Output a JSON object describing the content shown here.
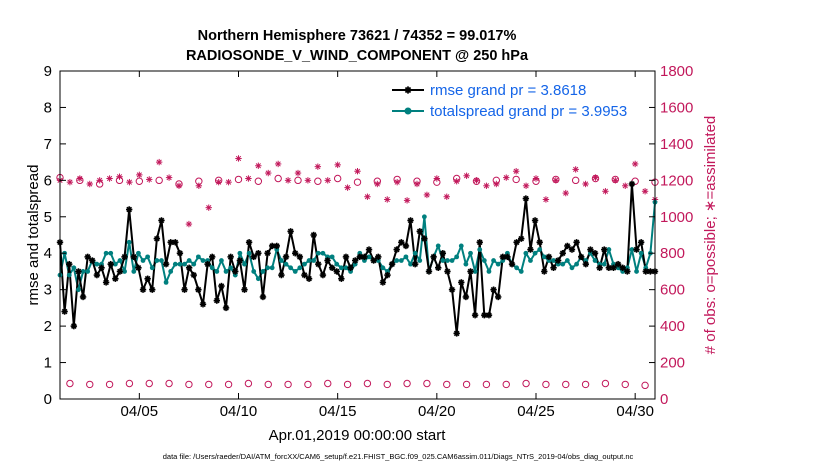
{
  "chart_data": {
    "type": "line",
    "title_line1": "Northern Hemisphere 73621 / 74352 = 99.017%",
    "title_line2": "RADIOSONDE_V_WIND_COMPONENT @ 250 hPa",
    "xlabel": "Apr.01,2019 00:00:00 start",
    "ylabel_left": "rmse and totalspread",
    "ylabel_right": "# of obs: o=possible; ∗=assimilated",
    "footnote": "data file: /Users/raeder/DAI/ATM_forcXX/CAM6_setup/f.e21.FHIST_BGC.f09_025.CAM6assim.011/Diags_NTrS_2019-04/obs_diag_output.nc",
    "xlim": [
      1,
      31
    ],
    "ylim_left": [
      0,
      9
    ],
    "ylim_right": [
      0,
      1800
    ],
    "x_ticks": [
      5,
      10,
      15,
      20,
      25,
      30
    ],
    "x_tick_labels": [
      "04/05",
      "04/10",
      "04/15",
      "04/20",
      "04/25",
      "04/30"
    ],
    "y_left_ticks": [
      "0",
      "1",
      "2",
      "3",
      "4",
      "5",
      "6",
      "7",
      "8",
      "9"
    ],
    "y_right_ticks": [
      "0",
      "200",
      "400",
      "600",
      "800",
      "1000",
      "1200",
      "1400",
      "1600",
      "1800"
    ],
    "grid": false,
    "legend_position": "top-right",
    "series": [
      {
        "name": "rmse grand pr = 3.8618",
        "color": "#000000",
        "marker": "asterisk",
        "axis": "left",
        "values": [
          4.3,
          2.4,
          3.7,
          2.0,
          3.5,
          2.8,
          3.9,
          3.8,
          3.4,
          3.6,
          3.2,
          3.7,
          3.3,
          3.5,
          3.9,
          5.2,
          3.9,
          3.6,
          3.0,
          3.3,
          3.0,
          4.4,
          4.9,
          3.7,
          4.3,
          4.3,
          4.0,
          3.0,
          3.6,
          3.4,
          3.0,
          2.6,
          3.7,
          3.9,
          2.7,
          3.1,
          2.5,
          3.9,
          3.5,
          3.8,
          3.0,
          4.3,
          3.9,
          4.0,
          2.8,
          4.0,
          4.2,
          4.2,
          3.4,
          3.9,
          4.6,
          4.0,
          3.9,
          3.4,
          3.3,
          4.5,
          3.7,
          3.4,
          3.8,
          3.6,
          3.5,
          3.3,
          3.9,
          3.6,
          3.8,
          3.9,
          3.9,
          4.1,
          3.8,
          3.9,
          3.2,
          3.4,
          3.7,
          4.1,
          4.3,
          4.2,
          4.9,
          3.7,
          4.6,
          4.4,
          3.5,
          3.9,
          3.6,
          4.0,
          3.5,
          3.0,
          1.8,
          3.2,
          2.8,
          3.5,
          2.3,
          4.3,
          2.3,
          2.3,
          3.0,
          2.8,
          3.9,
          3.9,
          3.7,
          4.3,
          4.4,
          5.5,
          4.1,
          4.9,
          4.3,
          3.5,
          3.9,
          3.6,
          3.8,
          4.0,
          4.2,
          4.1,
          4.3,
          3.9,
          3.7,
          4.1,
          4.0,
          3.6,
          4.1,
          3.6,
          3.6,
          3.7,
          3.6,
          3.5,
          5.9,
          4.1,
          4.3,
          3.5,
          3.5,
          3.5
        ]
      },
      {
        "name": "totalspread grand pr = 3.9953",
        "color": "#00807f",
        "marker": "dot",
        "axis": "left",
        "values": [
          3.4,
          4.0,
          3.4,
          3.6,
          3.0,
          3.5,
          3.5,
          3.8,
          3.7,
          3.7,
          4.0,
          4.0,
          3.7,
          3.8,
          3.5,
          4.3,
          3.5,
          4.0,
          3.8,
          3.9,
          3.6,
          3.8,
          3.8,
          3.2,
          3.5,
          3.7,
          3.7,
          3.7,
          3.8,
          3.7,
          3.9,
          3.8,
          3.8,
          3.6,
          3.5,
          3.8,
          3.5,
          3.6,
          3.4,
          4.0,
          3.7,
          4.0,
          3.5,
          3.3,
          3.5,
          3.6,
          3.6,
          4.1,
          3.8,
          3.7,
          3.6,
          3.5,
          3.6,
          3.7,
          3.8,
          3.8,
          4.0,
          4.0,
          3.9,
          3.9,
          3.7,
          3.6,
          3.6,
          3.5,
          3.7,
          4.0,
          3.8,
          3.9,
          3.8,
          3.8,
          3.6,
          3.5,
          3.7,
          3.8,
          3.8,
          3.9,
          3.7,
          4.0,
          3.8,
          5.0,
          3.5,
          3.9,
          4.2,
          3.8,
          3.8,
          3.8,
          3.9,
          4.2,
          3.7,
          4.0,
          3.5,
          4.1,
          3.8,
          3.5,
          3.8,
          3.7,
          3.8,
          4.0,
          3.7,
          3.6,
          3.5,
          4.0,
          3.8,
          4.0,
          4.1,
          3.9,
          3.8,
          3.8,
          3.7,
          3.7,
          3.8,
          3.6,
          3.7,
          3.9,
          3.8,
          4.0,
          3.8,
          3.7,
          3.7,
          4.1,
          3.7,
          3.6,
          3.5,
          3.6,
          4.1,
          3.5,
          4.0,
          3.6,
          4.0,
          5.4
        ]
      }
    ],
    "obs_possible": {
      "name": "possible",
      "marker": "circle",
      "color": "#c2185b",
      "axis": "right",
      "x": [
        1,
        1.5,
        2,
        2.5,
        3,
        3.5,
        4,
        4.5,
        5,
        5.5,
        6,
        6.5,
        7,
        7.5,
        8,
        8.5,
        9,
        9.5,
        10,
        10.5,
        11,
        11.5,
        12,
        12.5,
        13,
        13.5,
        14,
        14.5,
        15,
        15.5,
        16,
        16.5,
        17,
        17.5,
        18,
        18.5,
        19,
        19.5,
        20,
        20.5,
        21,
        21.5,
        22,
        22.5,
        23,
        23.5,
        24,
        24.5,
        25,
        25.5,
        26,
        26.5,
        27,
        27.5,
        28,
        28.5,
        29,
        29.5,
        30,
        30.5,
        31
      ],
      "values": [
        1215,
        85,
        1200,
        80,
        1180,
        80,
        1200,
        85,
        1195,
        85,
        1200,
        85,
        1180,
        80,
        1195,
        80,
        1200,
        80,
        1205,
        85,
        1195,
        80,
        1210,
        80,
        1200,
        80,
        1195,
        85,
        1210,
        80,
        1190,
        85,
        1195,
        80,
        1205,
        85,
        1195,
        85,
        1190,
        80,
        1210,
        80,
        1195,
        80,
        1200,
        80,
        1205,
        85,
        1195,
        80,
        1205,
        80,
        1200,
        80,
        1210,
        85,
        1205,
        80,
        1195,
        75,
        1190
      ]
    },
    "obs_assimilated": {
      "name": "assimilated",
      "marker": "star",
      "color": "#c2185b",
      "axis": "right",
      "x": [
        1,
        1.5,
        2,
        2.5,
        3,
        3.5,
        4,
        4.5,
        5,
        5.5,
        6,
        6.5,
        7,
        7.5,
        8,
        8.5,
        9,
        9.5,
        10,
        10.5,
        11,
        11.5,
        12,
        12.5,
        13,
        13.5,
        14,
        14.5,
        15,
        15.5,
        16,
        16.5,
        17,
        17.5,
        18,
        18.5,
        19,
        19.5,
        20,
        20.5,
        21,
        21.5,
        22,
        22.5,
        23,
        23.5,
        24,
        24.5,
        25,
        25.5,
        26,
        26.5,
        27,
        27.5,
        28,
        28.5,
        29,
        29.5,
        30,
        30.5,
        31
      ],
      "values": [
        1200,
        1190,
        1210,
        1180,
        1200,
        1210,
        1220,
        1190,
        1230,
        1205,
        1300,
        1215,
        1170,
        960,
        1170,
        1050,
        1190,
        1190,
        1320,
        1210,
        1280,
        1240,
        1290,
        1200,
        1240,
        1200,
        1275,
        1200,
        1285,
        1160,
        1250,
        1110,
        1180,
        1095,
        1190,
        1090,
        1180,
        1120,
        1210,
        1110,
        1195,
        1225,
        1200,
        1170,
        1180,
        1215,
        1250,
        1170,
        1210,
        1095,
        1200,
        1130,
        1260,
        1180,
        1215,
        1140,
        1200,
        1170,
        1290,
        1140,
        1095
      ]
    }
  }
}
